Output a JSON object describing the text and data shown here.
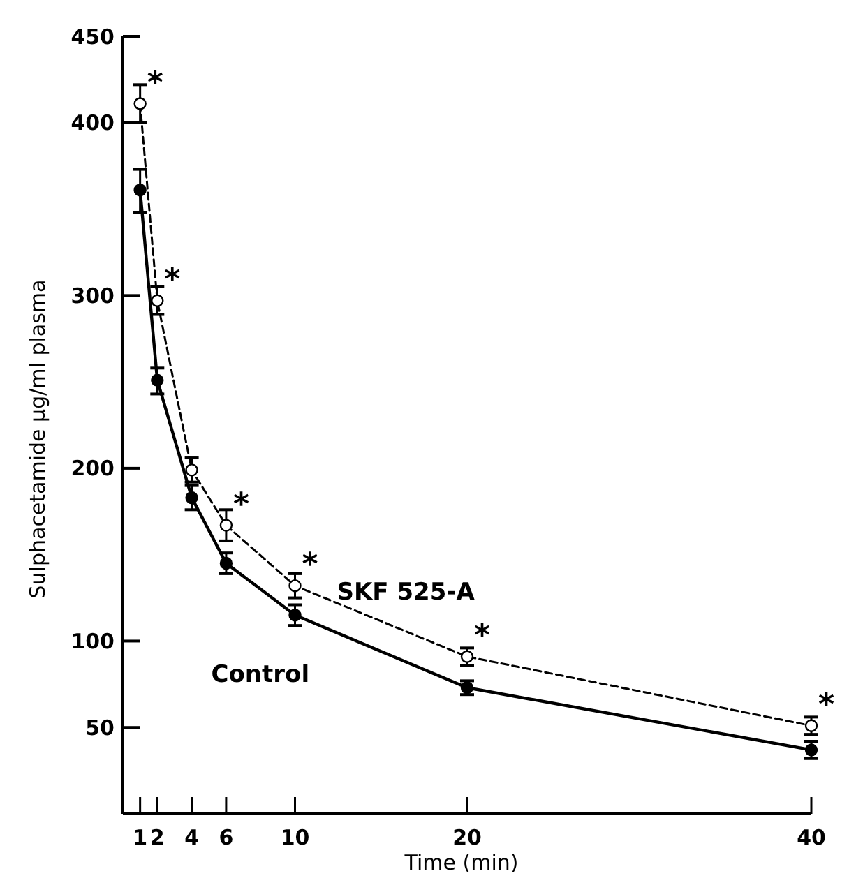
{
  "chart_data": {
    "type": "line",
    "xlabel": "Time (min)",
    "ylabel": "Sulphacetamide μg/ml plasma",
    "x": [
      1,
      2,
      4,
      6,
      10,
      20,
      40
    ],
    "series": [
      {
        "name": "SKF 525-A",
        "color": "#000000",
        "line_style": "dashed",
        "values": [
          411,
          297,
          199,
          167,
          132,
          91,
          51
        ],
        "errors": [
          11,
          8,
          7,
          9,
          7,
          5,
          5
        ]
      },
      {
        "name": "Control",
        "color": "#000000",
        "line_style": "solid",
        "values": [
          361,
          251,
          183,
          145,
          115,
          73,
          37
        ],
        "errors": [
          [
            348,
            373
          ],
          [
            243,
            258
          ],
          7,
          6,
          6,
          4,
          5
        ]
      }
    ],
    "marker": "circle",
    "xlim": [
      0,
      40
    ],
    "xticks": [
      1,
      2,
      4,
      6,
      10,
      20,
      40
    ],
    "ylim": [
      0,
      450
    ],
    "yticks": [
      50,
      100,
      200,
      300,
      400,
      450
    ],
    "grid": false,
    "annotations": [
      {
        "text": "*",
        "x": 1,
        "y": 411
      },
      {
        "text": "*",
        "x": 2,
        "y": 297
      },
      {
        "text": "*",
        "x": 6,
        "y": 167
      },
      {
        "text": "*",
        "x": 10,
        "y": 132
      },
      {
        "text": "*",
        "x": 20,
        "y": 91
      },
      {
        "text": "*",
        "x": 40,
        "y": 51
      }
    ]
  }
}
